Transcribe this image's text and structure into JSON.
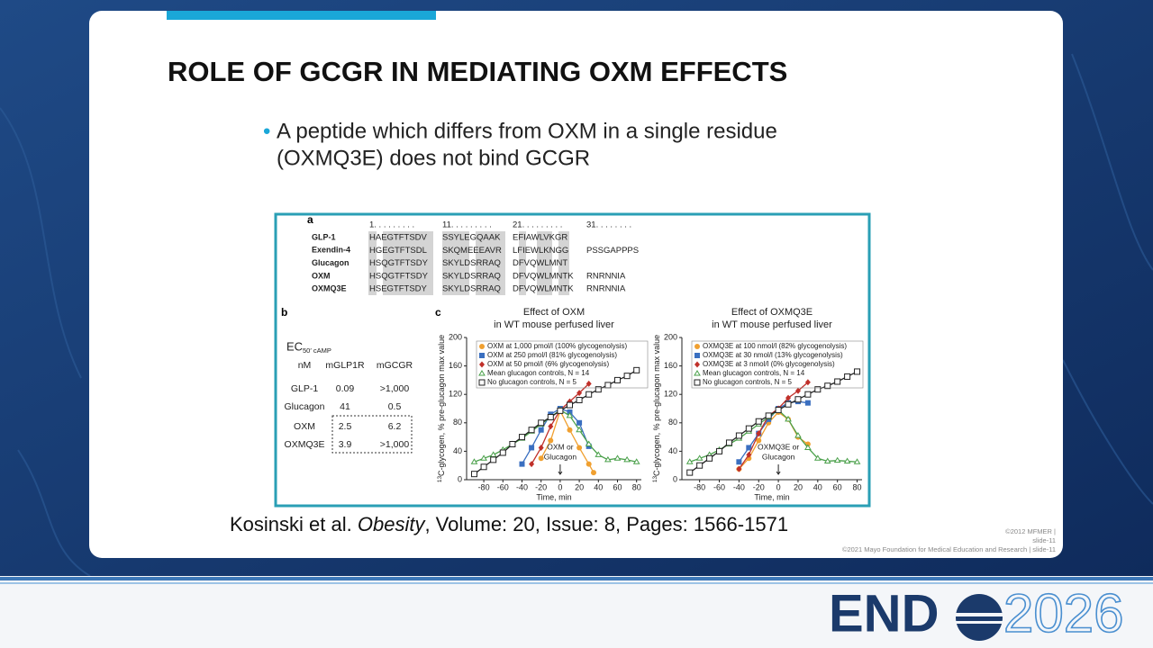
{
  "slide": {
    "title": "ROLE OF GCGR IN MEDIATING OXM EFFECTS",
    "bullet": [
      "A peptide which differs from OXM in a single residue",
      "(OXMQ3E) does not bind GCGR"
    ],
    "citation": {
      "authors": "Kosinski et al.",
      "journal": "Obesity",
      "details": ", Volume: 20, Issue: 8, Pages: 1566-1571"
    },
    "footer": [
      "©2012 MFMER  |",
      "slide-11",
      "©2021 Mayo Foundation for Medical Education and Research  |  slide-11"
    ],
    "logo": {
      "left": "END",
      "right": "2026"
    }
  },
  "figure": {
    "panel_a": {
      "label": "a",
      "positions": [
        "1. . . . . . . . .",
        "11. . . . . . . . .",
        "21. . . . . . . . .",
        "31. . . . . . . ."
      ],
      "rows": [
        {
          "name": "GLP-1",
          "segments": [
            "HAEGTFTSDV",
            "SSYLEGQAAK",
            "EFIAWLVKGR"
          ]
        },
        {
          "name": "Exendin-4",
          "segments": [
            "HGEGTFTSDL",
            "SKQMEEEAVR",
            "LFIEWLKNGG",
            "PSSGAPPPS"
          ]
        },
        {
          "name": "Glucagon",
          "segments": [
            "HSQGTFTSDY",
            "SKYLDSRRAQ",
            "DFVQWLMNT"
          ]
        },
        {
          "name": "OXM",
          "segments": [
            "HSQGTFTSDY",
            "SKYLDSRRAQ",
            "DFVQWLMNTK",
            "RNRNNIA"
          ]
        },
        {
          "name": "OXMQ3E",
          "segments": [
            "HSEGTFTSDY",
            "SKYLDSRRAQ",
            "DFVQWLMNTK",
            "RNRNNIA"
          ]
        }
      ]
    },
    "panel_b": {
      "label": "b",
      "ec": "EC",
      "ec_sub": "50′ cAMP",
      "header": [
        "nM",
        "mGLP1R",
        "mGCGR"
      ],
      "rows": [
        [
          "GLP-1",
          "0.09",
          ">1,000"
        ],
        [
          "Glucagon",
          "41",
          "0.5"
        ],
        [
          "OXM",
          "2.5",
          "6.2"
        ],
        [
          "OXMQ3E",
          "3.9",
          ">1,000"
        ]
      ]
    },
    "panel_c": {
      "label": "c",
      "charts": [
        {
          "type": "line",
          "title": [
            "Effect of OXM",
            "in WT mouse perfused liver"
          ],
          "xlabel": "Time, min",
          "ylabel_sup": "13",
          "ylabel": "C-glycogen, % pre-glucagon max value",
          "annotation": [
            "OXM or",
            "Glucagon"
          ],
          "xlim": [
            -98,
            85
          ],
          "ylim": [
            0,
            200
          ],
          "xticks": [
            -80,
            -60,
            -40,
            -20,
            0,
            20,
            40,
            60,
            80
          ],
          "yticks": [
            0,
            40,
            80,
            120,
            160,
            200
          ],
          "series": [
            {
              "name": "OXM at 1,000 pmol/l (100% glycogenolysis)",
              "color": "#f0a030",
              "marker": "circle",
              "x": [
                -20,
                -10,
                0,
                10,
                20,
                30,
                35
              ],
              "values": [
                30,
                55,
                97,
                70,
                45,
                22,
                10
              ]
            },
            {
              "name": "OXM at 250 pmol/l (81% glycogenolysis)",
              "color": "#3a6fc0",
              "marker": "square",
              "x": [
                -40,
                -30,
                -20,
                -10,
                0,
                10,
                20,
                30
              ],
              "values": [
                22,
                45,
                70,
                92,
                100,
                95,
                80,
                47
              ]
            },
            {
              "name": "OXM at 50 pmol/l (6% glycogenolysis)",
              "color": "#c0302a",
              "marker": "diamond",
              "x": [
                -30,
                -20,
                -10,
                0,
                10,
                20,
                30
              ],
              "values": [
                22,
                45,
                75,
                98,
                110,
                122,
                135
              ]
            },
            {
              "name": "Mean glucagon controls, N = 14",
              "color": "#4aa04a",
              "marker": "triangle",
              "x": [
                -90,
                -80,
                -70,
                -60,
                -50,
                -40,
                -30,
                -20,
                -10,
                0,
                10,
                20,
                30,
                40,
                50,
                60,
                70,
                80
              ],
              "values": [
                25,
                30,
                35,
                42,
                50,
                58,
                68,
                78,
                88,
                98,
                90,
                70,
                50,
                35,
                28,
                30,
                28,
                25
              ]
            },
            {
              "name": "No glucagon controls, N = 5",
              "color": "#222222",
              "marker": "open-square",
              "x": [
                -90,
                -80,
                -70,
                -60,
                -50,
                -40,
                -30,
                -20,
                -10,
                0,
                10,
                20,
                30,
                40,
                50,
                60,
                70,
                80
              ],
              "values": [
                8,
                18,
                28,
                38,
                50,
                60,
                70,
                80,
                88,
                97,
                105,
                112,
                120,
                127,
                133,
                140,
                146,
                154
              ]
            }
          ]
        },
        {
          "type": "line",
          "title": [
            "Effect of OXMQ3E",
            "in WT mouse perfused liver"
          ],
          "xlabel": "Time, min",
          "ylabel_sup": "13",
          "ylabel": "C-glycogen, % pre-glucagon max value",
          "annotation": [
            "OXMQ3E or",
            "Glucagon"
          ],
          "xlim": [
            -98,
            85
          ],
          "ylim": [
            0,
            200
          ],
          "xticks": [
            -80,
            -60,
            -40,
            -20,
            0,
            20,
            40,
            60,
            80
          ],
          "yticks": [
            0,
            40,
            80,
            120,
            160,
            200
          ],
          "series": [
            {
              "name": "OXMQ3E at 100 nmol/l (82% glycogenolysis)",
              "color": "#f0a030",
              "marker": "circle",
              "x": [
                -40,
                -30,
                -20,
                -10,
                0,
                10,
                20,
                30
              ],
              "values": [
                15,
                30,
                55,
                80,
                95,
                85,
                60,
                50
              ]
            },
            {
              "name": "OXMQ3E at 30 nmol/l (13% glycogenolysis)",
              "color": "#3a6fc0",
              "marker": "square",
              "x": [
                -40,
                -30,
                -20,
                -10,
                0,
                10,
                20,
                30
              ],
              "values": [
                25,
                45,
                65,
                85,
                100,
                108,
                110,
                108
              ]
            },
            {
              "name": "OXMQ3E at 3 nmol/l (0% glycogenolysis)",
              "color": "#c0302a",
              "marker": "diamond",
              "x": [
                -40,
                -30,
                -20,
                -10,
                0,
                10,
                20,
                30
              ],
              "values": [
                15,
                35,
                65,
                90,
                100,
                115,
                125,
                137
              ]
            },
            {
              "name": "Mean glucagon controls, N = 14",
              "color": "#4aa04a",
              "marker": "triangle",
              "x": [
                -90,
                -80,
                -70,
                -60,
                -50,
                -40,
                -30,
                -20,
                -10,
                0,
                10,
                20,
                30,
                40,
                50,
                60,
                70,
                80
              ],
              "values": [
                25,
                30,
                35,
                42,
                50,
                58,
                68,
                78,
                88,
                98,
                85,
                62,
                45,
                30,
                26,
                27,
                26,
                25
              ]
            },
            {
              "name": "No glucagon controls, N = 5",
              "color": "#222222",
              "marker": "open-square",
              "x": [
                -90,
                -80,
                -70,
                -60,
                -50,
                -40,
                -30,
                -20,
                -10,
                0,
                10,
                20,
                30,
                40,
                50,
                60,
                70,
                80
              ],
              "values": [
                10,
                20,
                30,
                40,
                52,
                62,
                72,
                82,
                90,
                98,
                106,
                113,
                120,
                127,
                132,
                138,
                145,
                152
              ]
            }
          ]
        }
      ]
    }
  }
}
